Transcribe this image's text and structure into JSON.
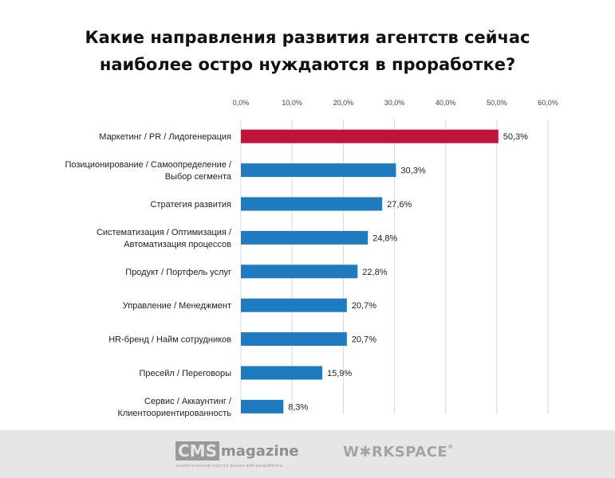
{
  "title": {
    "line1": "Какие направления развития агентств сейчас",
    "line2": "наиболее остро нуждаются в проработке?"
  },
  "chart_data": {
    "type": "bar",
    "orientation": "horizontal",
    "title": "Какие направления развития агентств сейчас наиболее остро нуждаются в проработке?",
    "categories": [
      [
        "Маркетинг / PR / Лидогенерация"
      ],
      [
        "Позиционирование / Самоопределение /",
        "Выбор сегмента"
      ],
      [
        "Стратегия развития"
      ],
      [
        "Систематизация / Оптимизация /",
        "Автоматизация процессов"
      ],
      [
        "Продукт / Портфель услуг"
      ],
      [
        "Управление / Менеджмент"
      ],
      [
        "HR-бренд / Найм сотрудников"
      ],
      [
        "Пресейл / Переговоры"
      ],
      [
        "Сервис / Аккаунтинг /",
        "Клиентоориентированность"
      ]
    ],
    "values": [
      50.3,
      30.3,
      27.6,
      24.8,
      22.8,
      20.7,
      20.7,
      15.9,
      8.3
    ],
    "value_labels": [
      "50,3%",
      "30,3%",
      "27,6%",
      "24,8%",
      "22,8%",
      "20,7%",
      "20,7%",
      "15,9%",
      "8,3%"
    ],
    "xlim": [
      0,
      60
    ],
    "ticks": [
      0,
      10,
      20,
      30,
      40,
      50,
      60
    ],
    "tick_labels": [
      "0,0%",
      "10,0%",
      "20,0%",
      "30,0%",
      "40,0%",
      "50,0%",
      "60,0%"
    ],
    "axis_position": "top",
    "grid": true,
    "colors": {
      "highlight": "#c0143c",
      "default": "#1f7bc0",
      "grid": "#d9d9d9"
    },
    "highlight_index": 0
  },
  "footer": {
    "cms_word": "CMS",
    "cms_magazine": "magazine",
    "cms_tagline": "аналитический портал рынка веб-разработки",
    "workspace_a": "W",
    "workspace_b": "RKSPACE"
  }
}
